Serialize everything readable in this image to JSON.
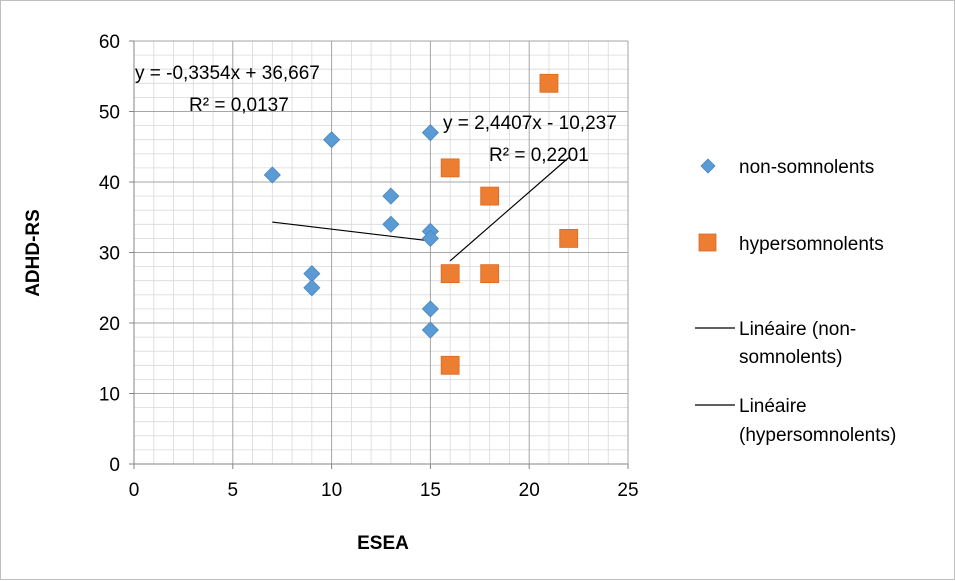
{
  "chart_data": {
    "type": "scatter",
    "xlabel": "ESEA",
    "ylabel": "ADHD-RS",
    "xlim": [
      0,
      25
    ],
    "ylim": [
      0,
      60
    ],
    "x_ticks": [
      "0",
      "5",
      "10",
      "15",
      "20",
      "25"
    ],
    "y_ticks": [
      "0",
      "10",
      "20",
      "30",
      "40",
      "50",
      "60"
    ],
    "grid": true,
    "legend_position": "right",
    "series": [
      {
        "name": "non-somnolents",
        "marker": "diamond",
        "color": "#5B9BD5",
        "points": [
          [
            7,
            41
          ],
          [
            9,
            27
          ],
          [
            9,
            25
          ],
          [
            10,
            46
          ],
          [
            13,
            38
          ],
          [
            13,
            34
          ],
          [
            15,
            47
          ],
          [
            15,
            33
          ],
          [
            15,
            32
          ],
          [
            15,
            22
          ],
          [
            15,
            19
          ]
        ]
      },
      {
        "name": "hypersomnolents",
        "marker": "square",
        "color": "#ED7D31",
        "points": [
          [
            16,
            42
          ],
          [
            16,
            27
          ],
          [
            16,
            14
          ],
          [
            18,
            38
          ],
          [
            18,
            27
          ],
          [
            21,
            54
          ],
          [
            22,
            32
          ]
        ]
      }
    ],
    "trendlines": [
      {
        "legend_lines": [
          "Linéaire (non-",
          "somnolents)"
        ],
        "slope": -0.3354,
        "intercept": 36.667,
        "x_range": [
          7,
          15
        ],
        "equation": "y = -0,3354x + 36,667",
        "r2": "R² = 0,0137"
      },
      {
        "legend_lines": [
          "Linéaire",
          "(hypersomnolents)"
        ],
        "slope": 2.4407,
        "intercept": -10.237,
        "x_range": [
          16,
          22
        ],
        "equation": "y = 2,4407x - 10,237",
        "r2": "R² = 0,2201"
      }
    ]
  }
}
